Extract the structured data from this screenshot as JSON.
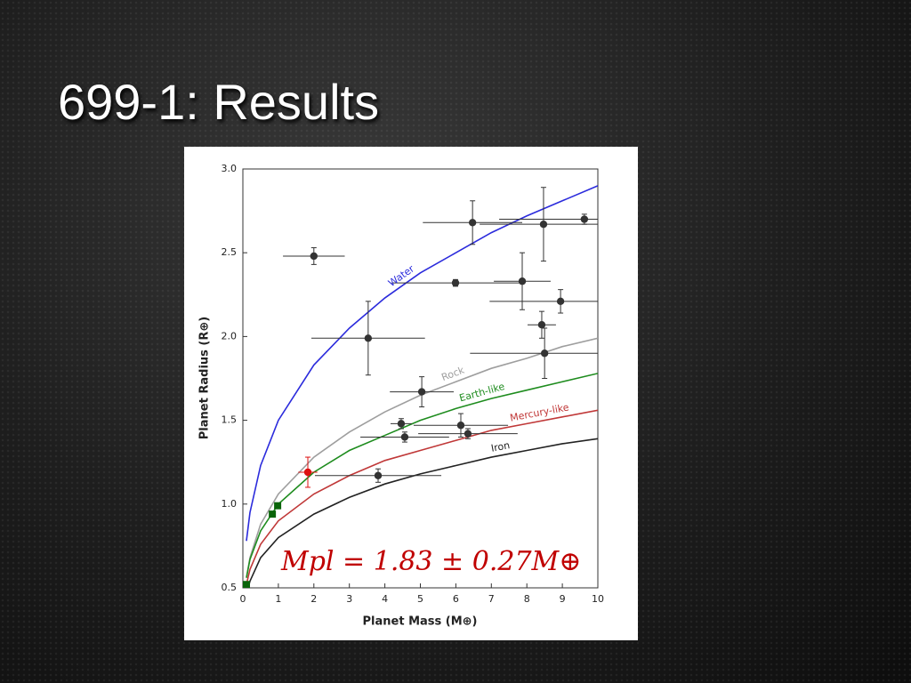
{
  "title": "699-1: Results",
  "chart_data": {
    "type": "scatter",
    "xlabel": "Planet Mass (M⊕)",
    "ylabel": "Planet Radius (R⊕)",
    "annotation": "Mpl = 1.83 ± 0.27M⊕",
    "xlim": [
      0,
      10
    ],
    "ylim": [
      0.5,
      3.0
    ],
    "xticks": [
      0,
      1,
      2,
      3,
      4,
      5,
      6,
      7,
      8,
      9,
      10
    ],
    "yticks": [
      0.5,
      {
        "value": 1,
        "label": "1.0"
      },
      1.5,
      {
        "value": 2,
        "label": "2.0"
      },
      2.5,
      {
        "value": 3,
        "label": "3.0"
      }
    ],
    "grid": false,
    "series": [
      {
        "name": "Water",
        "color": "#2b2bdc",
        "style": "line",
        "x": [
          0.1,
          0.2,
          0.5,
          1,
          2,
          3,
          4,
          5,
          6,
          7,
          8,
          9,
          10
        ],
        "values": [
          0.78,
          0.95,
          1.23,
          1.5,
          1.83,
          2.05,
          2.23,
          2.38,
          2.5,
          2.62,
          2.72,
          2.81,
          2.9
        ]
      },
      {
        "name": "Rock",
        "color": "#9e9e9e",
        "style": "line",
        "x": [
          0.1,
          0.2,
          0.5,
          1,
          2,
          3,
          4,
          5,
          6,
          7,
          8,
          9,
          10
        ],
        "values": [
          0.56,
          0.68,
          0.88,
          1.06,
          1.28,
          1.43,
          1.55,
          1.65,
          1.73,
          1.81,
          1.87,
          1.94,
          1.99
        ]
      },
      {
        "name": "Earth-like",
        "color": "#1e8c1e",
        "style": "line",
        "x": [
          0.1,
          0.2,
          0.5,
          1,
          2,
          3,
          4,
          5,
          6,
          7,
          8,
          9,
          10
        ],
        "values": [
          0.56,
          0.67,
          0.84,
          1.0,
          1.19,
          1.32,
          1.41,
          1.5,
          1.57,
          1.63,
          1.68,
          1.73,
          1.78
        ]
      },
      {
        "name": "Mercury-like",
        "color": "#c03838",
        "style": "line",
        "x": [
          0.1,
          0.2,
          0.5,
          1,
          2,
          3,
          4,
          5,
          6,
          7,
          8,
          9,
          10
        ],
        "values": [
          0.52,
          0.61,
          0.76,
          0.9,
          1.06,
          1.17,
          1.26,
          1.32,
          1.38,
          1.44,
          1.48,
          1.52,
          1.56
        ]
      },
      {
        "name": "Iron",
        "color": "#222222",
        "style": "line",
        "x": [
          0.1,
          0.2,
          0.5,
          1,
          2,
          3,
          4,
          5,
          6,
          7,
          8,
          9,
          10
        ],
        "values": [
          0.46,
          0.54,
          0.68,
          0.8,
          0.94,
          1.04,
          1.12,
          1.18,
          1.23,
          1.28,
          1.32,
          1.36,
          1.39
        ]
      },
      {
        "color": "#333333",
        "style": "errorbar",
        "x": [
          2.0,
          3.53,
          5.04,
          4.46,
          4.56,
          6.14,
          6.34,
          3.81,
          5.99,
          6.47,
          8.47,
          9.62,
          7.87,
          8.95,
          8.42,
          8.5
        ],
        "values": [
          2.48,
          1.99,
          1.67,
          1.48,
          1.4,
          1.47,
          1.42,
          1.17,
          2.32,
          2.68,
          2.67,
          2.7,
          2.33,
          2.21,
          2.07,
          1.9
        ],
        "xerr": [
          0.87,
          1.6,
          0.9,
          0.3,
          1.25,
          1.33,
          1.4,
          1.78,
          1.8,
          1.4,
          1.8,
          2.4,
          0.8,
          2.0,
          0.4,
          2.1
        ],
        "yerr": [
          0.05,
          0.22,
          0.09,
          0.03,
          0.03,
          0.07,
          0.03,
          0.04,
          0.02,
          0.13,
          0.22,
          0.03,
          0.17,
          0.07,
          0.08,
          0.15
        ]
      },
      {
        "color": "#dd1111",
        "style": "errorbar",
        "x": [
          1.83
        ],
        "values": [
          1.19
        ],
        "xerr": [
          0.27
        ],
        "yerr": [
          0.09
        ]
      },
      {
        "color": "#0a640a",
        "style": "marker",
        "marker": "square",
        "x": [
          0.1,
          0.83,
          0.98
        ],
        "values": [
          0.52,
          0.94,
          0.99
        ]
      }
    ]
  }
}
